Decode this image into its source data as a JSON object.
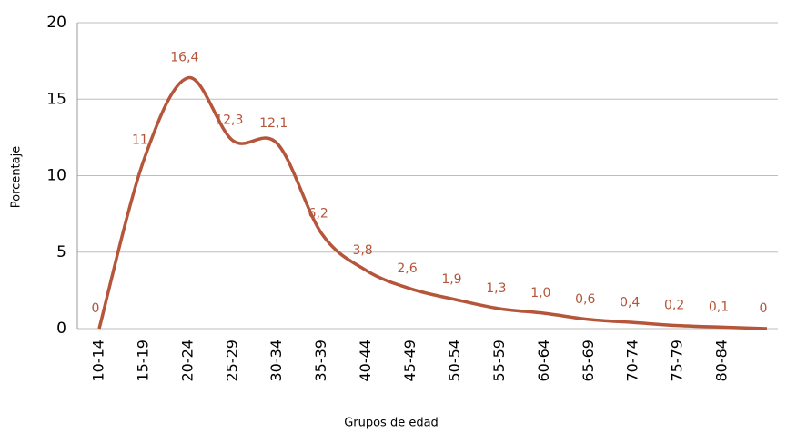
{
  "chart_data": {
    "type": "line",
    "ylabel": "Porcentaje",
    "xlabel": "Grupos de edad",
    "categories": [
      "10-14",
      "15-19",
      "20-24",
      "25-29",
      "30-34",
      "35-39",
      "40-44",
      "45-49",
      "50-54",
      "55-59",
      "60-64",
      "65-69",
      "70-74",
      "75-79",
      "80-84",
      null
    ],
    "series": [
      {
        "name": null,
        "color": "#b5553a",
        "values": [
          0,
          11,
          16.4,
          12.3,
          12.1,
          6.2,
          3.8,
          2.6,
          1.9,
          1.3,
          1.0,
          0.6,
          0.4,
          0.2,
          0.1,
          0
        ],
        "value_labels": [
          "0",
          "11",
          "16,4",
          "12,3",
          "12,1",
          "6,2",
          "3,8",
          "2,6",
          "1,9",
          "1,3",
          "1,0",
          "0,6",
          "0,4",
          "0,2",
          "0,1",
          "0"
        ]
      }
    ],
    "ylim": [
      0,
      20
    ],
    "yticks": [
      0,
      5,
      10,
      15,
      20
    ],
    "grid": true
  }
}
